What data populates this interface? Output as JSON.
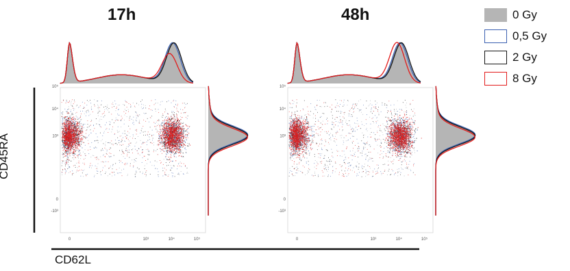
{
  "chart_data": {
    "type": "scatter",
    "panels": [
      {
        "title": "17h",
        "clusters": [
          {
            "name": "CD62L- CD45RA+",
            "x": -0.05,
            "y": 2.8
          },
          {
            "name": "CD62L+ CD45RA+",
            "x": 4.0,
            "y": 2.8
          }
        ],
        "top_histogram_peaks": [
          {
            "x": -0.05,
            "rel_height": 1.0
          },
          {
            "x": 4.0,
            "rel_height": 1.0
          }
        ],
        "right_histogram_peak": {
          "y": 2.8,
          "rel_height": 1.0
        }
      },
      {
        "title": "48h",
        "clusters": [
          {
            "name": "CD62L- CD45RA+",
            "x": -0.05,
            "y": 2.8
          },
          {
            "name": "CD62L+ CD45RA+",
            "x": 4.0,
            "y": 2.8
          }
        ],
        "top_histogram_peaks": [
          {
            "x": -0.05,
            "rel_height": 1.0
          },
          {
            "x": 4.0,
            "rel_height": 1.0
          }
        ],
        "right_histogram_peak": {
          "y": 2.8,
          "rel_height": 1.0
        }
      }
    ],
    "xlabel": "CD62L",
    "ylabel": "CD45RA",
    "x_ticks": [
      "0",
      "10³",
      "10⁴",
      "10⁵"
    ],
    "y_ticks": [
      "-10³",
      "0",
      "10³",
      "10⁴",
      "10⁵"
    ],
    "series": [
      {
        "name": "0 Gy",
        "color": "#b5b5b5",
        "style": "filled"
      },
      {
        "name": "0,5 Gy",
        "color": "#3a5fb0",
        "style": "outline"
      },
      {
        "name": "2 Gy",
        "color": "#111111",
        "style": "outline"
      },
      {
        "name": "8 Gy",
        "color": "#e21b1b",
        "style": "outline"
      }
    ],
    "legend_position": "top-right"
  }
}
